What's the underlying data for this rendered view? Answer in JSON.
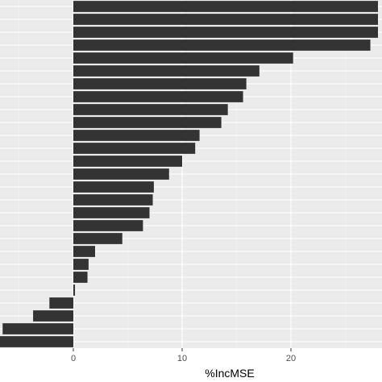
{
  "chart_data": {
    "type": "bar",
    "orientation": "horizontal",
    "title": "",
    "xlabel": "%IncMSE",
    "ylabel": "",
    "xlim": [
      -6.8,
      28
    ],
    "xticks": [
      0,
      10,
      20
    ],
    "xtick_labels": [
      "0",
      "10",
      "20"
    ],
    "grid": true,
    "legend": "none",
    "colors": {
      "bar": "#333333",
      "panel": "#ebebeb",
      "grid_major": "#ffffff",
      "grid_minor": "#f5f5f5"
    },
    "series": [
      {
        "values": [
          28.0,
          28.0,
          28.0,
          27.3,
          20.2,
          17.1,
          15.9,
          15.6,
          14.2,
          13.6,
          11.6,
          11.2,
          10.0,
          8.8,
          7.4,
          7.3,
          7.0,
          6.4,
          4.5,
          2.0,
          1.4,
          1.3,
          0.15,
          -2.2,
          -3.7,
          -6.5,
          -6.8
        ]
      }
    ]
  }
}
